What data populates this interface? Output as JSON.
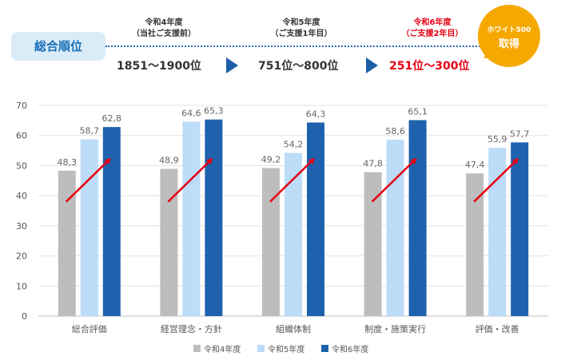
{
  "header": {
    "rank_label": "総合順位",
    "periods": [
      {
        "line1": "令和4年度",
        "line2": "（当社ご支援前）",
        "rank": "1851〜1900位",
        "highlight": false
      },
      {
        "line1": "令和5年度",
        "line2": "（ご支援1年目）",
        "rank": "751位〜800位",
        "highlight": false
      },
      {
        "line1": "令和6年度",
        "line2": "（ご支援2年目）",
        "rank": "251位〜300位",
        "highlight": true
      }
    ],
    "badge": {
      "line1": "ホワイト500",
      "line2": "取得"
    }
  },
  "colors": {
    "r4": "#bdbdbd",
    "r5": "#bcdcf8",
    "r6": "#1e62ad",
    "arrow": "#e60012",
    "accent_red": "#e60012",
    "badge": "#f5a800"
  },
  "chart_data": {
    "type": "bar",
    "categories": [
      "総合評価",
      "経営理念・方針",
      "組織体制",
      "制度・施策実行",
      "評価・改善"
    ],
    "series": [
      {
        "name": "令和4年度",
        "values": [
          48.3,
          48.9,
          49.2,
          47.8,
          47.4
        ],
        "labels": [
          "48,3",
          "48,9",
          "49,2",
          "47,8",
          "47,4"
        ]
      },
      {
        "name": "令和5年度",
        "values": [
          58.7,
          64.6,
          54.2,
          58.6,
          55.9
        ],
        "labels": [
          "58,7",
          "64,6",
          "54,2",
          "58,6",
          "55,9"
        ]
      },
      {
        "name": "令和6年度",
        "values": [
          62.8,
          65.3,
          64.3,
          65.1,
          57.7
        ],
        "labels": [
          "62,8",
          "65,3",
          "64,3",
          "65,1",
          "57,7"
        ]
      }
    ],
    "yticks": [
      "0",
      "10",
      "20",
      "30",
      "40",
      "50",
      "60",
      "70"
    ],
    "ylim": [
      0,
      70
    ],
    "grid": true,
    "legend_position": "bottom-center",
    "annotations": "red upward arrow over each category group"
  }
}
